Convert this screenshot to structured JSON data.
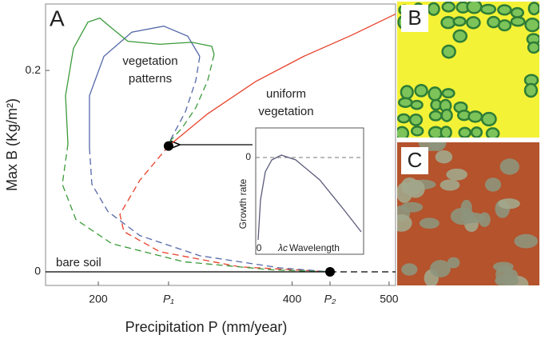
{
  "panel_labels": [
    "B",
    "C"
  ],
  "chart_data": [
    {
      "type": "line",
      "panel_label": "A",
      "xlabel": "Precipitation P (mm/year)",
      "ylabel": "Max B (Kg/m²)",
      "xlim": [
        145.6,
        506.7
      ],
      "ylim": [
        -0.0135,
        0.266
      ],
      "xticks": [
        200,
        {
          "value": 272.5,
          "label": "P₁"
        },
        400,
        {
          "value": 439.1,
          "label": "P₂"
        },
        500
      ],
      "yticks": [
        0,
        0.2
      ],
      "annotations": [
        [
          "vegetation",
          "patterns"
        ],
        [
          "uniform",
          "vegetation"
        ],
        [
          "bare soil"
        ]
      ],
      "series": [
        {
          "color": "#e8402a",
          "dash": false,
          "x": [
            272.5,
            312.9,
            362.4,
            411.9,
            461.3,
            506.7
          ],
          "values": [
            0.125,
            0.157,
            0.189,
            0.214,
            0.235,
            0.256
          ]
        },
        {
          "color": "#e8402a",
          "dash": true,
          "x": [
            272.5,
            242.9,
            222.3,
            226.4,
            263.5,
            345.9,
            439.1
          ],
          "values": [
            0.125,
            0.091,
            0.057,
            0.04,
            0.02,
            0.005,
            0
          ]
        },
        {
          "color": "#5468a8",
          "dash": false,
          "x": [
            190.9,
            190.9,
            205.8,
            234.6,
            267.6,
            292.3,
            304.7
          ],
          "values": [
            0.123,
            0.175,
            0.214,
            0.238,
            0.244,
            0.234,
            0.214
          ]
        },
        {
          "color": "#5468a8",
          "dash": true,
          "x": [
            304.7,
            300.6,
            289.9,
            280.0,
            273.4
          ],
          "values": [
            0.214,
            0.19,
            0.159,
            0.141,
            0.129
          ]
        },
        {
          "color": "#5468a8",
          "dash": true,
          "x": [
            190.9,
            193.4,
            209.9,
            242.9,
            304.7,
            387.1,
            439.1
          ],
          "values": [
            0.123,
            0.087,
            0.06,
            0.036,
            0.016,
            0.004,
            0
          ]
        },
        {
          "color": "#3a9a3a",
          "dash": false,
          "x": [
            168.7,
            166.2,
            174.4,
            189.3,
            201.6,
            214.0,
            230.5,
            263.5,
            296.5,
            317.1,
            319.5
          ],
          "values": [
            0.127,
            0.175,
            0.222,
            0.248,
            0.252,
            0.242,
            0.229,
            0.226,
            0.228,
            0.224,
            0.216
          ]
        },
        {
          "color": "#3a9a3a",
          "dash": true,
          "x": [
            319.5,
            312.9,
            300.6,
            286.6,
            274.2
          ],
          "values": [
            0.216,
            0.19,
            0.163,
            0.143,
            0.13
          ]
        },
        {
          "color": "#3a9a3a",
          "dash": true,
          "x": [
            168.7,
            162.9,
            176.9,
            214.0,
            288.2,
            378.9,
            439.1
          ],
          "values": [
            0.127,
            0.087,
            0.052,
            0.028,
            0.01,
            0.002,
            0
          ]
        },
        {
          "color": "#000000",
          "dash": false,
          "x": [
            145.6,
            439.1
          ],
          "values": [
            0,
            0
          ]
        },
        {
          "color": "#000000",
          "dash": true,
          "x": [
            439.1,
            506.7
          ],
          "values": [
            0,
            0
          ]
        }
      ],
      "points": {
        "x": [
          272.5,
          439.1
        ],
        "values": [
          0.125,
          0
        ]
      }
    },
    {
      "type": "line",
      "xlabel": "Wavelength",
      "ylabel": "Growth rate",
      "xlim": [
        -0.07,
        4.43
      ],
      "ylim": [
        -1.21,
        0.37
      ],
      "xticks": [
        0,
        {
          "value": 1,
          "label": "λc"
        }
      ],
      "yticks": [
        0
      ],
      "series": [
        {
          "color": "#5a5a7a",
          "dash": false,
          "x": [
            0.03,
            0.13,
            0.33,
            0.6,
            1,
            1.6,
            2.6,
            3.6,
            4.33
          ],
          "values": [
            -1.03,
            -0.53,
            -0.18,
            -0.03,
            0.03,
            -0.03,
            -0.28,
            -0.65,
            -0.93
          ]
        }
      ]
    }
  ]
}
